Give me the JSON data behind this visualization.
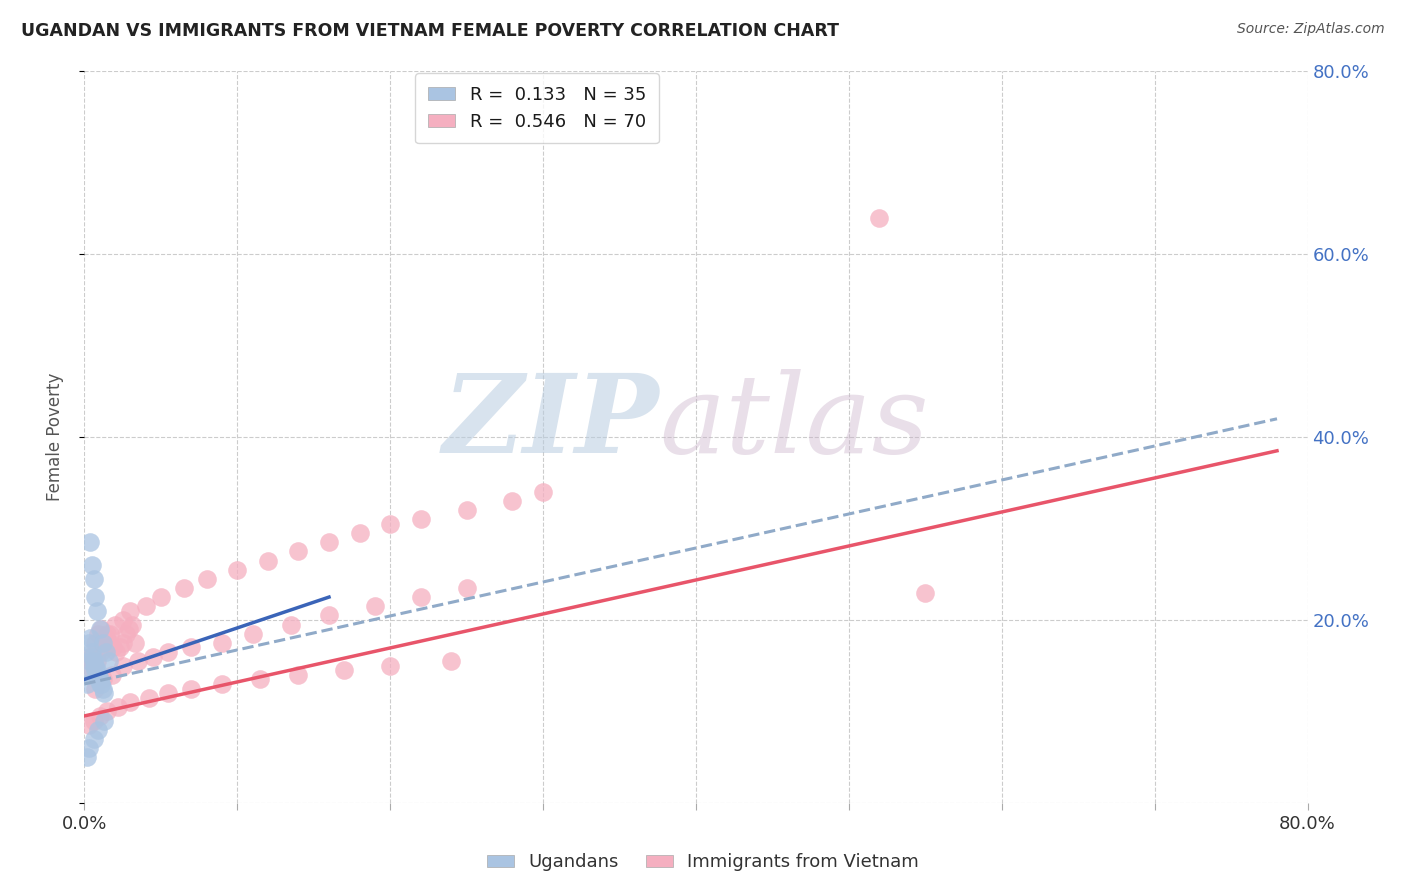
{
  "title": "UGANDAN VS IMMIGRANTS FROM VIETNAM FEMALE POVERTY CORRELATION CHART",
  "source": "Source: ZipAtlas.com",
  "ylabel": "Female Poverty",
  "xlim": [
    0.0,
    0.8
  ],
  "ylim": [
    0.0,
    0.8
  ],
  "ugandan_R": 0.133,
  "ugandan_N": 35,
  "vietnam_R": 0.546,
  "vietnam_N": 70,
  "ugandan_color": "#aac4e2",
  "vietnam_color": "#f5afc0",
  "ugandan_line_color": "#3a64b8",
  "vietnam_line_color": "#e8556a",
  "trendline_dashed_color": "#90aac8",
  "background_color": "#ffffff",
  "ugandan_x": [
    0.002,
    0.003,
    0.004,
    0.005,
    0.006,
    0.007,
    0.008,
    0.009,
    0.01,
    0.011,
    0.012,
    0.013,
    0.003,
    0.004,
    0.005,
    0.006,
    0.007,
    0.008,
    0.009,
    0.01,
    0.011,
    0.004,
    0.005,
    0.006,
    0.007,
    0.008,
    0.01,
    0.012,
    0.014,
    0.016,
    0.002,
    0.003,
    0.006,
    0.009,
    0.013
  ],
  "ugandan_y": [
    0.13,
    0.14,
    0.155,
    0.16,
    0.15,
    0.145,
    0.14,
    0.135,
    0.13,
    0.13,
    0.125,
    0.12,
    0.175,
    0.18,
    0.165,
    0.155,
    0.15,
    0.145,
    0.14,
    0.135,
    0.13,
    0.285,
    0.26,
    0.245,
    0.225,
    0.21,
    0.19,
    0.175,
    0.165,
    0.155,
    0.05,
    0.06,
    0.07,
    0.08,
    0.09
  ],
  "vietnam_x": [
    0.003,
    0.005,
    0.007,
    0.009,
    0.011,
    0.013,
    0.015,
    0.017,
    0.019,
    0.021,
    0.023,
    0.025,
    0.027,
    0.029,
    0.031,
    0.033,
    0.005,
    0.008,
    0.011,
    0.014,
    0.017,
    0.02,
    0.025,
    0.03,
    0.04,
    0.05,
    0.065,
    0.08,
    0.1,
    0.12,
    0.14,
    0.16,
    0.18,
    0.2,
    0.22,
    0.25,
    0.28,
    0.3,
    0.007,
    0.012,
    0.018,
    0.025,
    0.035,
    0.045,
    0.055,
    0.07,
    0.09,
    0.11,
    0.135,
    0.16,
    0.19,
    0.22,
    0.25,
    0.52,
    0.003,
    0.006,
    0.01,
    0.015,
    0.022,
    0.03,
    0.042,
    0.055,
    0.07,
    0.09,
    0.115,
    0.14,
    0.17,
    0.2,
    0.24,
    0.55
  ],
  "vietnam_y": [
    0.16,
    0.155,
    0.175,
    0.185,
    0.19,
    0.17,
    0.185,
    0.175,
    0.17,
    0.165,
    0.17,
    0.175,
    0.185,
    0.19,
    0.195,
    0.175,
    0.145,
    0.155,
    0.165,
    0.18,
    0.185,
    0.195,
    0.2,
    0.21,
    0.215,
    0.225,
    0.235,
    0.245,
    0.255,
    0.265,
    0.275,
    0.285,
    0.295,
    0.305,
    0.31,
    0.32,
    0.33,
    0.34,
    0.125,
    0.135,
    0.14,
    0.15,
    0.155,
    0.16,
    0.165,
    0.17,
    0.175,
    0.185,
    0.195,
    0.205,
    0.215,
    0.225,
    0.235,
    0.64,
    0.085,
    0.09,
    0.095,
    0.1,
    0.105,
    0.11,
    0.115,
    0.12,
    0.125,
    0.13,
    0.135,
    0.14,
    0.145,
    0.15,
    0.155,
    0.23
  ],
  "ugandan_line_x": [
    0.0,
    0.16
  ],
  "ugandan_line_y": [
    0.135,
    0.225
  ],
  "vietnam_line_x": [
    0.0,
    0.78
  ],
  "vietnam_line_y": [
    0.095,
    0.385
  ],
  "dashed_line_x": [
    0.0,
    0.78
  ],
  "dashed_line_y": [
    0.13,
    0.42
  ]
}
